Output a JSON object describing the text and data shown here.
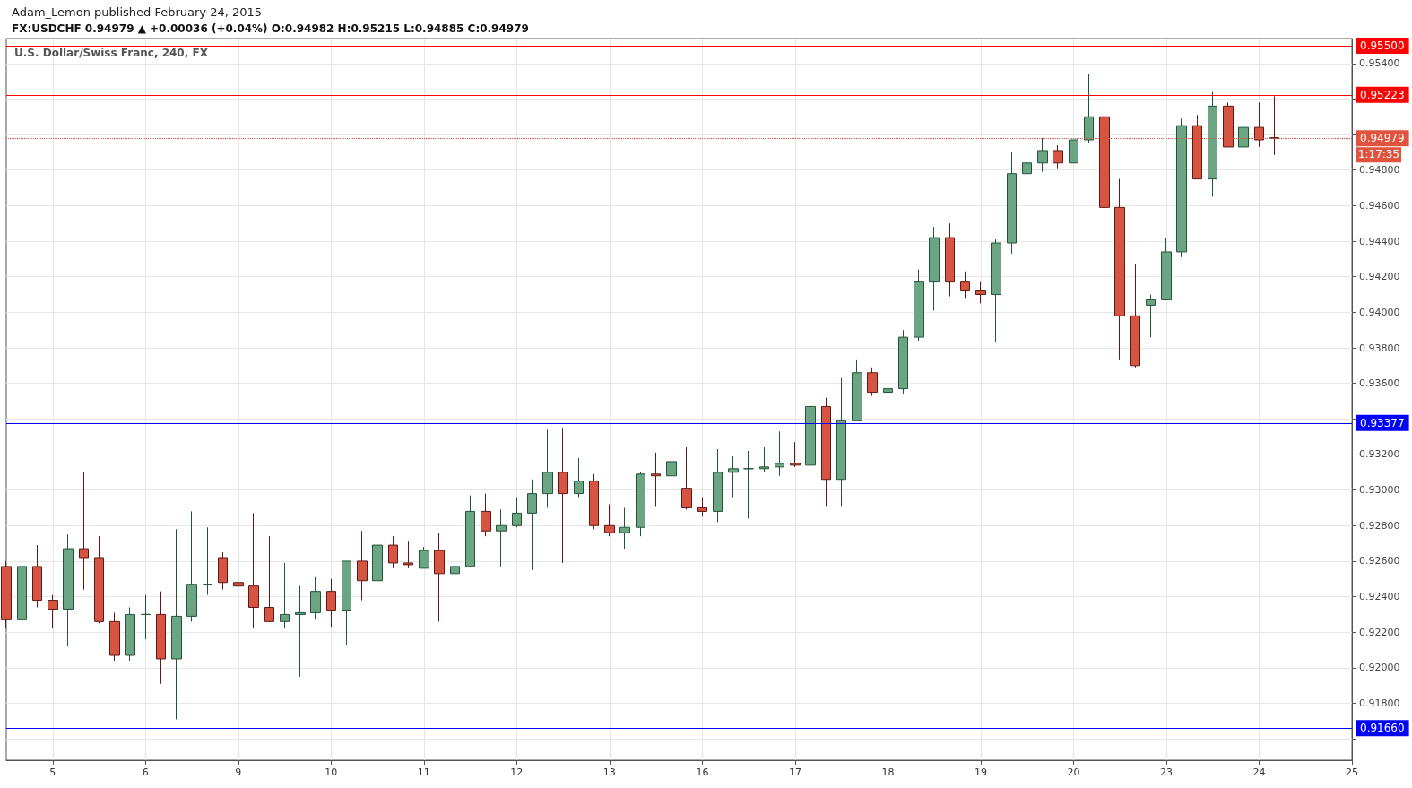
{
  "chart_data": {
    "type": "candlestick",
    "title": "Adam_Lemon published February 24, 2015",
    "subtitle": "FX:USDCHF 0.94979 ▲ +0.00036 (+0.04%) O:0.94982 H:0.95215 L:0.94885 C:0.94979",
    "annotations": [
      "U.S. Dollar/Swiss Franc, 240, FX",
      "1:17:35"
    ],
    "categories": [
      null,
      null,
      null,
      "5",
      null,
      null,
      null,
      null,
      null,
      "6",
      null,
      null,
      null,
      null,
      null,
      "9",
      null,
      null,
      null,
      null,
      null,
      "10",
      null,
      null,
      null,
      null,
      null,
      "11",
      null,
      null,
      null,
      null,
      null,
      "12",
      null,
      null,
      null,
      null,
      null,
      "13",
      null,
      null,
      null,
      null,
      null,
      "16",
      null,
      null,
      null,
      null,
      null,
      "17",
      null,
      null,
      null,
      null,
      null,
      "18",
      null,
      null,
      null,
      null,
      null,
      "19",
      null,
      null,
      null,
      null,
      null,
      "20",
      null,
      null,
      null,
      null,
      null,
      "23",
      null,
      null,
      null,
      null,
      null,
      "24",
      null,
      null,
      null,
      null,
      null,
      "25"
    ],
    "ohlc": [
      [
        0.9257,
        0.926,
        0.9222,
        0.9227
      ],
      [
        0.9227,
        0.927,
        0.9206,
        0.9257
      ],
      [
        0.9257,
        0.9269,
        0.9234,
        0.9238
      ],
      [
        0.9238,
        0.9241,
        0.9222,
        0.9233
      ],
      [
        0.9233,
        0.9275,
        0.9212,
        0.9267
      ],
      [
        0.9267,
        0.931,
        0.9244,
        0.9262
      ],
      [
        0.9262,
        0.9274,
        0.9225,
        0.9226
      ],
      [
        0.9226,
        0.9231,
        0.9204,
        0.9207
      ],
      [
        0.9207,
        0.9234,
        0.9204,
        0.923
      ],
      [
        0.923,
        0.9241,
        0.9216,
        0.923
      ],
      [
        0.923,
        0.9243,
        0.9191,
        0.9205
      ],
      [
        0.9205,
        0.9278,
        0.9171,
        0.9229
      ],
      [
        0.9229,
        0.9288,
        0.9226,
        0.9247
      ],
      [
        0.9247,
        0.9279,
        0.9241,
        0.9247
      ],
      [
        0.9262,
        0.9265,
        0.9244,
        0.9248
      ],
      [
        0.9248,
        0.925,
        0.9242,
        0.9246
      ],
      [
        0.9246,
        0.9287,
        0.9222,
        0.9234
      ],
      [
        0.9234,
        0.9274,
        0.9226,
        0.9226
      ],
      [
        0.9226,
        0.9259,
        0.9222,
        0.923
      ],
      [
        0.923,
        0.9246,
        0.9195,
        0.9231
      ],
      [
        0.9231,
        0.9251,
        0.9227,
        0.9243
      ],
      [
        0.9243,
        0.925,
        0.9223,
        0.9232
      ],
      [
        0.9232,
        0.926,
        0.9213,
        0.926
      ],
      [
        0.926,
        0.9277,
        0.9238,
        0.9249
      ],
      [
        0.9249,
        0.9269,
        0.9239,
        0.9269
      ],
      [
        0.9269,
        0.9274,
        0.9256,
        0.9259
      ],
      [
        0.9259,
        0.9271,
        0.9256,
        0.9258
      ],
      [
        0.9256,
        0.9268,
        0.9256,
        0.9266
      ],
      [
        0.9266,
        0.9276,
        0.9226,
        0.9253
      ],
      [
        0.9253,
        0.9264,
        0.9253,
        0.9257
      ],
      [
        0.9257,
        0.9297,
        0.9257,
        0.9288
      ],
      [
        0.9288,
        0.9298,
        0.9274,
        0.9277
      ],
      [
        0.9277,
        0.9289,
        0.9257,
        0.928
      ],
      [
        0.928,
        0.9296,
        0.9279,
        0.9287
      ],
      [
        0.9287,
        0.9306,
        0.9255,
        0.9298
      ],
      [
        0.9298,
        0.9334,
        0.929,
        0.931
      ],
      [
        0.931,
        0.9335,
        0.9259,
        0.9298
      ],
      [
        0.9298,
        0.9318,
        0.9296,
        0.9305
      ],
      [
        0.9305,
        0.9309,
        0.9278,
        0.928
      ],
      [
        0.928,
        0.9292,
        0.9274,
        0.9276
      ],
      [
        0.9276,
        0.929,
        0.9267,
        0.9279
      ],
      [
        0.9279,
        0.931,
        0.9274,
        0.9309
      ],
      [
        0.9309,
        0.9321,
        0.9291,
        0.9308
      ],
      [
        0.9308,
        0.9334,
        0.9308,
        0.9316
      ],
      [
        0.9301,
        0.9324,
        0.9289,
        0.929
      ],
      [
        0.929,
        0.9296,
        0.9285,
        0.9288
      ],
      [
        0.9288,
        0.9323,
        0.9282,
        0.931
      ],
      [
        0.931,
        0.9319,
        0.9296,
        0.9312
      ],
      [
        0.9312,
        0.9322,
        0.9284,
        0.9312
      ],
      [
        0.9312,
        0.9324,
        0.931,
        0.9313
      ],
      [
        0.9313,
        0.9333,
        0.9308,
        0.9315
      ],
      [
        0.9315,
        0.9327,
        0.9313,
        0.9314
      ],
      [
        0.9314,
        0.9364,
        0.9313,
        0.9347
      ],
      [
        0.9347,
        0.9352,
        0.9291,
        0.9306
      ],
      [
        0.9306,
        0.9363,
        0.9291,
        0.9339
      ],
      [
        0.9339,
        0.9373,
        0.9339,
        0.9366
      ],
      [
        0.9366,
        0.9369,
        0.9353,
        0.9355
      ],
      [
        0.9355,
        0.9361,
        0.9313,
        0.9357
      ],
      [
        0.9357,
        0.939,
        0.9354,
        0.9386
      ],
      [
        0.9386,
        0.9424,
        0.9384,
        0.9417
      ],
      [
        0.9417,
        0.9448,
        0.9401,
        0.9442
      ],
      [
        0.9442,
        0.945,
        0.9409,
        0.9417
      ],
      [
        0.9417,
        0.9423,
        0.9408,
        0.9412
      ],
      [
        0.9412,
        0.9417,
        0.9405,
        0.941
      ],
      [
        0.941,
        0.9441,
        0.9383,
        0.9439
      ],
      [
        0.9439,
        0.949,
        0.9433,
        0.9478
      ],
      [
        0.9478,
        0.9488,
        0.9413,
        0.9484
      ],
      [
        0.9484,
        0.9498,
        0.9479,
        0.9491
      ],
      [
        0.9491,
        0.9494,
        0.9481,
        0.9484
      ],
      [
        0.9484,
        0.9497,
        0.9484,
        0.9497
      ],
      [
        0.9497,
        0.9534,
        0.9495,
        0.951
      ],
      [
        0.951,
        0.9531,
        0.9453,
        0.9459
      ],
      [
        0.9459,
        0.9475,
        0.9373,
        0.9398
      ],
      [
        0.9398,
        0.9427,
        0.9369,
        0.937
      ],
      [
        0.9404,
        0.941,
        0.9386,
        0.9407
      ],
      [
        0.9407,
        0.9442,
        0.9407,
        0.9434
      ],
      [
        0.9434,
        0.9509,
        0.9431,
        0.9505
      ],
      [
        0.9505,
        0.9511,
        0.9475,
        0.9475
      ],
      [
        0.9475,
        0.9524,
        0.9465,
        0.9516
      ],
      [
        0.9516,
        0.9518,
        0.9493,
        0.9493
      ],
      [
        0.9493,
        0.9511,
        0.9493,
        0.9504
      ],
      [
        0.9504,
        0.9518,
        0.9493,
        0.9497
      ],
      [
        0.94982,
        0.95215,
        0.94885,
        0.94979
      ],
      null,
      null,
      null,
      null,
      null
    ],
    "ylim": [
      0.9148,
      0.9554
    ],
    "yticks": [
      {
        "value": 0.916,
        "label": null
      },
      {
        "value": 0.918,
        "label": "0.91800"
      },
      {
        "value": 0.92,
        "label": "0.92000"
      },
      {
        "value": 0.922,
        "label": "0.92200"
      },
      {
        "value": 0.924,
        "label": "0.92400"
      },
      {
        "value": 0.926,
        "label": "0.92600"
      },
      {
        "value": 0.928,
        "label": "0.92800"
      },
      {
        "value": 0.93,
        "label": "0.93000"
      },
      {
        "value": 0.932,
        "label": "0.93200"
      },
      {
        "value": 0.934,
        "label": null
      },
      {
        "value": 0.936,
        "label": "0.93600"
      },
      {
        "value": 0.938,
        "label": "0.93800"
      },
      {
        "value": 0.94,
        "label": "0.94000"
      },
      {
        "value": 0.942,
        "label": "0.94200"
      },
      {
        "value": 0.944,
        "label": "0.94400"
      },
      {
        "value": 0.946,
        "label": "0.94600"
      },
      {
        "value": 0.948,
        "label": "0.94800"
      },
      {
        "value": 0.95,
        "label": null
      },
      {
        "value": 0.952,
        "label": null
      },
      {
        "value": 0.954,
        "label": "0.95400"
      }
    ],
    "ref_lines": [
      {
        "axis": "y",
        "value": 0.955,
        "label": "0.95500",
        "color": "#ff0000"
      },
      {
        "axis": "y",
        "value": 0.95223,
        "label": "0.95223",
        "color": "#ff0000"
      },
      {
        "axis": "y",
        "value": 0.94979,
        "label": "0.94979",
        "color": "#e0533f",
        "line_style": "dotted"
      },
      {
        "axis": "y",
        "value": 0.93377,
        "label": "0.93377",
        "color": "#0000ff"
      },
      {
        "axis": "y",
        "value": 0.9166,
        "label": "0.91660",
        "color": "#0000ff"
      }
    ],
    "grid": true
  }
}
